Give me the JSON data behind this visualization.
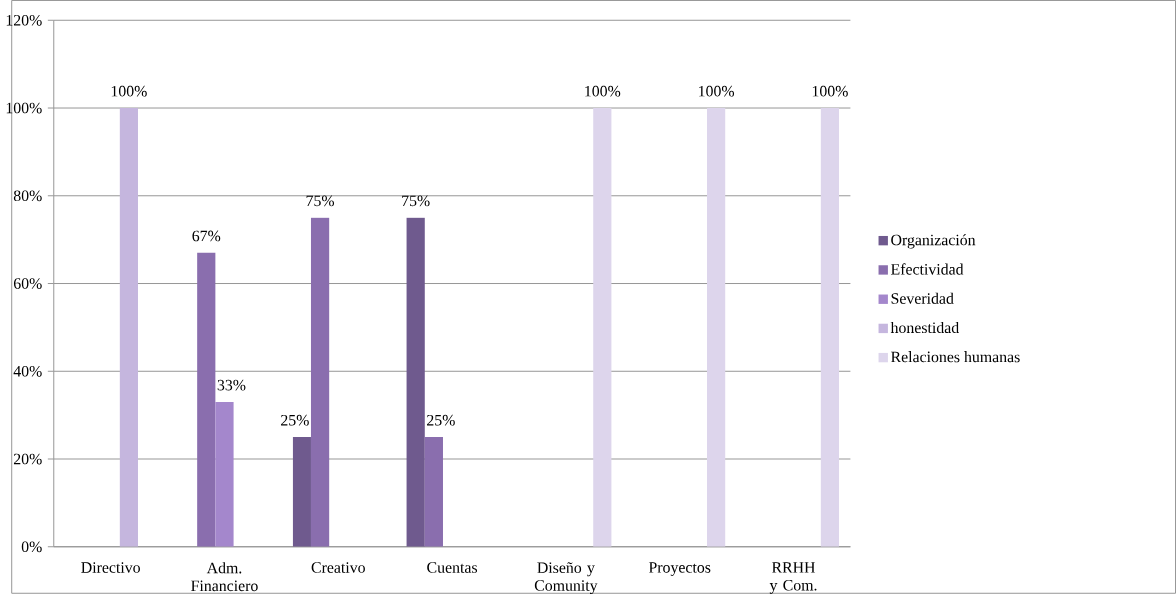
{
  "chart_data": {
    "type": "bar",
    "categories": [
      "Directivo",
      "Adm. Financiero",
      "Creativo",
      "Cuentas",
      "Diseño y Comunity",
      "Proyectos",
      "RRHH y Com."
    ],
    "series": [
      {
        "name": "Organización",
        "color": "#6f5a8e",
        "values": [
          null,
          null,
          25,
          75,
          null,
          null,
          null
        ],
        "value_labels": [
          null,
          null,
          "25%",
          "75%",
          null,
          null,
          null
        ]
      },
      {
        "name": "Efectividad",
        "color": "#8a6eae",
        "values": [
          null,
          67,
          75,
          25,
          null,
          null,
          null
        ],
        "value_labels": [
          null,
          "67%",
          "75%",
          "25%",
          null,
          null,
          null
        ]
      },
      {
        "name": "Severidad",
        "color": "#a487cc",
        "values": [
          null,
          33,
          null,
          null,
          null,
          null,
          null
        ],
        "value_labels": [
          null,
          "33%",
          null,
          null,
          null,
          null,
          null
        ]
      },
      {
        "name": "honestidad",
        "color": "#c5b6de",
        "values": [
          100,
          null,
          null,
          null,
          null,
          null,
          null
        ],
        "value_labels": [
          "100%",
          null,
          null,
          null,
          null,
          null,
          null
        ]
      },
      {
        "name": "Relaciones humanas",
        "color": "#ddd5ec",
        "values": [
          null,
          null,
          null,
          null,
          100,
          100,
          100
        ],
        "value_labels": [
          null,
          null,
          null,
          null,
          "100%",
          "100%",
          "100%"
        ]
      }
    ],
    "ylim": [
      0,
      120
    ],
    "yticks": [
      {
        "value": 0,
        "label": "0%"
      },
      {
        "value": 20,
        "label": "20%"
      },
      {
        "value": 40,
        "label": "40%"
      },
      {
        "value": 60,
        "label": "60%"
      },
      {
        "value": 80,
        "label": "80%"
      },
      {
        "value": 100,
        "label": "100%"
      },
      {
        "value": 120,
        "label": "120%"
      }
    ],
    "grid": "y",
    "legend": "right"
  }
}
